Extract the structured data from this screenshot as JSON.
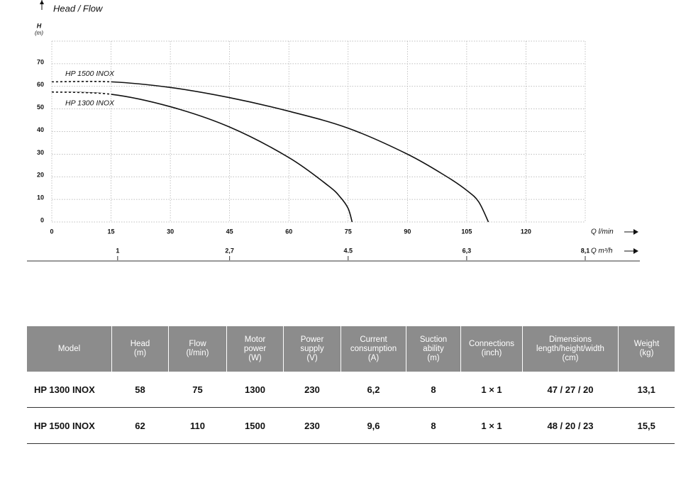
{
  "chart_data": {
    "type": "line",
    "title": "Head / Flow",
    "y_label": "H",
    "y_unit": "(m)",
    "x_label": "Q l/min",
    "x2_label": "Q m³/h",
    "xlim": [
      0,
      135
    ],
    "xticks": [
      0,
      15,
      30,
      45,
      60,
      75,
      90,
      105,
      120
    ],
    "x2lim": [
      0,
      8.1
    ],
    "x2ticks": [
      1,
      {
        "value": 2.7,
        "label": "2,7"
      },
      4.5,
      {
        "value": 6.3,
        "label": "6,3"
      },
      {
        "value": 8.1,
        "label": "8,1"
      }
    ],
    "ylim": [
      0,
      80
    ],
    "yticks": [
      0,
      10,
      20,
      30,
      40,
      50,
      60,
      70
    ],
    "grid": true,
    "dashed_segments": 1,
    "series": [
      {
        "name": "HP 1500 INOX",
        "color": "#111111",
        "x": [
          0,
          15,
          30,
          45,
          60,
          75,
          90,
          100,
          105,
          108,
          110.5
        ],
        "values": [
          62,
          62,
          59.5,
          55,
          49,
          41.5,
          30,
          20,
          14,
          9,
          0
        ]
      },
      {
        "name": "HP 1300 INOX",
        "color": "#111111",
        "x": [
          0,
          15,
          30,
          45,
          60,
          70,
          73,
          75,
          76
        ],
        "values": [
          57.5,
          56.5,
          51,
          42,
          28.5,
          16,
          11,
          6,
          0
        ]
      }
    ]
  },
  "table": {
    "header": [
      "Model",
      "Head\n(m)",
      "Flow\n(l/min)",
      "Motor\npower\n(W)",
      "Power\nsupply\n(V)",
      "Current\nconsumption\n(A)",
      "Suction\nability\n(m)",
      "Connections\n(inch)",
      "Dimensions\nlength/height/width\n(cm)",
      "Weight\n(kg)"
    ],
    "rows": [
      [
        "HP 1300 INOX",
        "58",
        "75",
        "1300",
        "230",
        "6,2",
        "8",
        "1 × 1",
        "47 / 27 / 20",
        "13,1"
      ],
      [
        "HP 1500 INOX",
        "62",
        "110",
        "1500",
        "230",
        "9,6",
        "8",
        "1 × 1",
        "48 / 20 / 23",
        "15,5"
      ]
    ]
  }
}
